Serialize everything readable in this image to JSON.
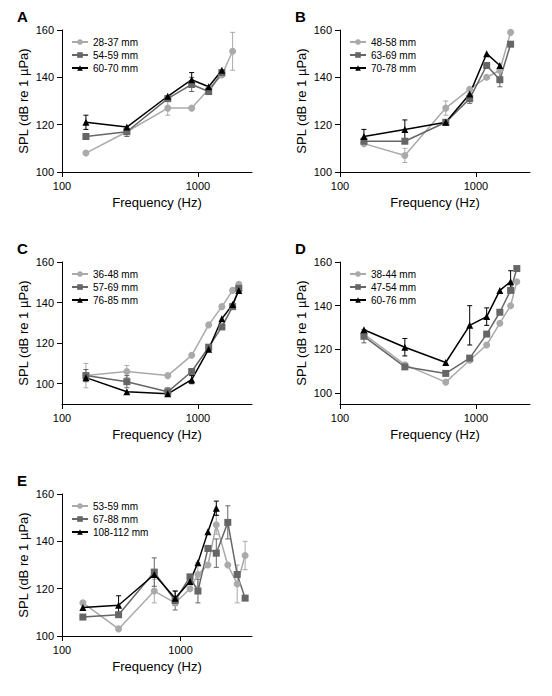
{
  "chart_data": [
    {
      "type": "line",
      "title": "A",
      "x_label": "Frequency (Hz)",
      "y_label": "SPL (dB re 1 µPa)",
      "log": "x",
      "grid": false,
      "legend": "top-left",
      "xlim": [
        100,
        2500
      ],
      "xticks": [
        100,
        1000
      ],
      "ylim": [
        100,
        160
      ],
      "yticks": [
        100,
        120,
        140,
        160
      ],
      "x": [
        150,
        300,
        600,
        900,
        1200,
        1500,
        1800
      ],
      "series": [
        {
          "name": "28-37 mm",
          "color": "#aaaaaa",
          "marker": "circle",
          "values": [
            108,
            117,
            127,
            127,
            135,
            141,
            151
          ],
          "errors": [
            null,
            null,
            3,
            null,
            null,
            null,
            8
          ]
        },
        {
          "name": "54-59 mm",
          "color": "#666666",
          "marker": "square",
          "values": [
            115,
            117,
            131,
            137,
            134,
            142,
            null
          ],
          "errors": [
            null,
            2,
            null,
            3,
            null,
            null,
            null
          ]
        },
        {
          "name": "60-70 mm",
          "color": "#000000",
          "marker": "triangle",
          "values": [
            121,
            119,
            132,
            139,
            136,
            143,
            null
          ],
          "errors": [
            3,
            null,
            null,
            3,
            null,
            null,
            null
          ]
        }
      ]
    },
    {
      "type": "line",
      "title": "B",
      "x_label": "Frequency (Hz)",
      "y_label": "SPL (dB re 1 µPa)",
      "log": "x",
      "grid": false,
      "legend": "top-left",
      "xlim": [
        100,
        2500
      ],
      "xticks": [
        100,
        1000
      ],
      "ylim": [
        100,
        160
      ],
      "yticks": [
        100,
        120,
        140,
        160
      ],
      "x": [
        150,
        300,
        600,
        900,
        1200,
        1500,
        1800
      ],
      "series": [
        {
          "name": "48-58 mm",
          "color": "#aaaaaa",
          "marker": "circle",
          "values": [
            112,
            107,
            127,
            135,
            140,
            143,
            159
          ],
          "errors": [
            null,
            3,
            3,
            null,
            null,
            null,
            null
          ]
        },
        {
          "name": "63-69 mm",
          "color": "#666666",
          "marker": "square",
          "values": [
            113,
            113,
            121,
            131,
            145,
            139,
            154
          ],
          "errors": [
            null,
            null,
            null,
            2,
            null,
            3,
            null
          ]
        },
        {
          "name": "70-78 mm",
          "color": "#000000",
          "marker": "triangle",
          "values": [
            115,
            118,
            121,
            133,
            150,
            145,
            null
          ],
          "errors": [
            3,
            4,
            null,
            null,
            null,
            null,
            null
          ]
        }
      ]
    },
    {
      "type": "line",
      "title": "C",
      "x_label": "Frequency (Hz)",
      "y_label": "SPL (dB re 1 µPa)",
      "log": "x",
      "grid": false,
      "legend": "top-left",
      "xlim": [
        100,
        2500
      ],
      "xticks": [
        100,
        1000
      ],
      "ylim": [
        90,
        160
      ],
      "yticks": [
        100,
        120,
        140,
        160
      ],
      "x": [
        150,
        300,
        600,
        900,
        1200,
        1500,
        1800,
        2000
      ],
      "series": [
        {
          "name": "36-48 mm",
          "color": "#aaaaaa",
          "marker": "circle",
          "values": [
            104,
            106,
            104,
            114,
            129,
            138,
            146,
            149
          ],
          "errors": [
            6,
            3,
            null,
            null,
            null,
            null,
            null,
            null
          ]
        },
        {
          "name": "57-69 mm",
          "color": "#666666",
          "marker": "square",
          "values": [
            104,
            101,
            96,
            106,
            118,
            128,
            138,
            147
          ],
          "errors": [
            3,
            3,
            2,
            null,
            null,
            null,
            null,
            null
          ]
        },
        {
          "name": "76-85 mm",
          "color": "#000000",
          "marker": "triangle",
          "values": [
            103,
            96,
            95,
            102,
            117,
            132,
            139,
            146
          ],
          "errors": [
            null,
            null,
            null,
            2,
            null,
            null,
            null,
            null
          ]
        }
      ]
    },
    {
      "type": "line",
      "title": "D",
      "x_label": "Frequency (Hz)",
      "y_label": "SPL (dB re 1 µPa)",
      "log": "x",
      "grid": false,
      "legend": "top-left",
      "xlim": [
        100,
        2500
      ],
      "xticks": [
        100,
        1000
      ],
      "ylim": [
        95,
        160
      ],
      "yticks": [
        100,
        120,
        140,
        160
      ],
      "x": [
        150,
        300,
        600,
        900,
        1200,
        1500,
        1800,
        2000
      ],
      "series": [
        {
          "name": "38-44 mm",
          "color": "#aaaaaa",
          "marker": "circle",
          "values": [
            127,
            113,
            105,
            115,
            122,
            132,
            140,
            151
          ],
          "errors": [
            null,
            null,
            null,
            null,
            null,
            null,
            null,
            null
          ]
        },
        {
          "name": "47-54 mm",
          "color": "#666666",
          "marker": "square",
          "values": [
            126,
            112,
            109,
            116,
            127,
            137,
            147,
            157
          ],
          "errors": [
            3,
            null,
            null,
            null,
            null,
            null,
            null,
            null
          ]
        },
        {
          "name": "60-76 mm",
          "color": "#000000",
          "marker": "triangle",
          "values": [
            129,
            121,
            114,
            131,
            135,
            147,
            151,
            null
          ],
          "errors": [
            null,
            4,
            null,
            9,
            4,
            null,
            5,
            null
          ]
        }
      ]
    },
    {
      "type": "line",
      "title": "E",
      "x_label": "Frequency (Hz)",
      "y_label": "SPL (dB re 1 µPa)",
      "log": "x",
      "grid": false,
      "legend": "top-left",
      "xlim": [
        100,
        4000
      ],
      "xticks": [
        100,
        1000
      ],
      "ylim": [
        100,
        160
      ],
      "yticks": [
        100,
        120,
        140,
        160
      ],
      "x": [
        150,
        300,
        600,
        900,
        1200,
        1400,
        1700,
        2000,
        2500,
        3000,
        3500
      ],
      "series": [
        {
          "name": "53-59 mm",
          "color": "#aaaaaa",
          "marker": "circle",
          "values": [
            114,
            103,
            119,
            114,
            120,
            126,
            130,
            147,
            130,
            122,
            134
          ],
          "errors": [
            null,
            null,
            5,
            null,
            null,
            5,
            null,
            4,
            null,
            8,
            6
          ]
        },
        {
          "name": "67-88 mm",
          "color": "#666666",
          "marker": "square",
          "values": [
            108,
            109,
            127,
            115,
            125,
            119,
            137,
            135,
            148,
            126,
            116
          ],
          "errors": [
            null,
            null,
            6,
            4,
            null,
            5,
            null,
            6,
            7,
            null,
            null
          ]
        },
        {
          "name": "108-112 mm",
          "color": "#000000",
          "marker": "triangle",
          "values": [
            112,
            113,
            126,
            116,
            123,
            131,
            144,
            154,
            null,
            null,
            null
          ],
          "errors": [
            null,
            4,
            null,
            3,
            null,
            null,
            null,
            3,
            null,
            null,
            null
          ]
        }
      ]
    }
  ]
}
